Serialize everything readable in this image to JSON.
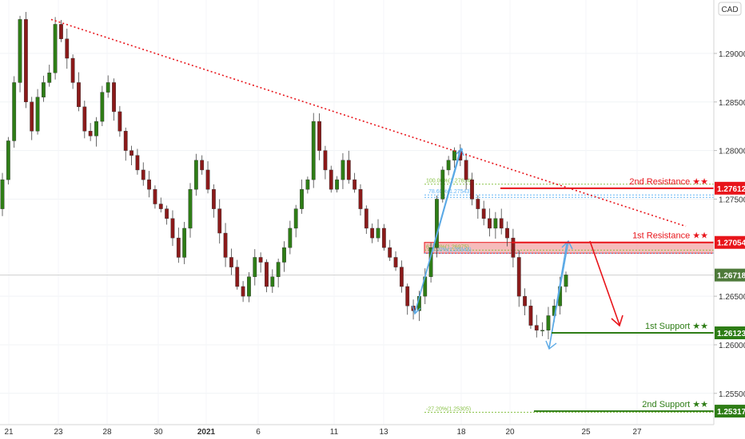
{
  "currency_badge": "CAD",
  "chart_data": {
    "type": "candlestick",
    "symbol_currency": "CAD",
    "y_ticks": [
      "1.29000",
      "1.28500",
      "1.28000",
      "1.27500",
      "1.26500",
      "1.26000",
      "1.25500"
    ],
    "x_ticks": [
      "21",
      "23",
      "28",
      "30",
      "2021",
      "6",
      "11",
      "13",
      "18",
      "20",
      "25",
      "27"
    ],
    "ylim": [
      1.2503,
      1.2955
    ],
    "last_price": "1.26718",
    "last_price_value": 1.26718,
    "levels": [
      {
        "id": "r2",
        "label": "2nd Resistance ★★",
        "price_label": "1.27612",
        "value": 1.27612,
        "color": "#e8151b"
      },
      {
        "id": "r1",
        "label": "1st Resistance ★★",
        "price_label": "1.27054",
        "value": 1.27054,
        "color": "#e8151b"
      },
      {
        "id": "s1",
        "label": "1st Support ★★",
        "price_label": "1.26123",
        "value": 1.26123,
        "color": "#2e7d16"
      },
      {
        "id": "s2",
        "label": "2nd Support ★★",
        "price_label": "1.25317",
        "value": 1.25317,
        "color": "#2e7d16"
      }
    ],
    "fib_labels": {
      "f100": "100.00%(1.27654)",
      "f786": "78.60%(1.27543)",
      "f618": "61.80%(1.26975)",
      "f50": "50.00%(1.26943)",
      "f_272": "-27.20%(1.25305)"
    },
    "closes": [
      1.277,
      1.281,
      1.287,
      1.2935,
      1.285,
      1.282,
      1.2855,
      1.287,
      1.288,
      1.293,
      1.2915,
      1.2895,
      1.287,
      1.2845,
      1.282,
      1.2815,
      1.283,
      1.286,
      1.287,
      1.284,
      1.282,
      1.28,
      1.2795,
      1.278,
      1.277,
      1.276,
      1.2745,
      1.274,
      1.273,
      1.271,
      1.269,
      1.272,
      1.276,
      1.279,
      1.278,
      1.276,
      1.274,
      1.2715,
      1.269,
      1.268,
      1.266,
      1.265,
      1.267,
      1.269,
      1.2685,
      1.266,
      1.267,
      1.2685,
      1.27,
      1.272,
      1.274,
      1.276,
      1.277,
      1.283,
      1.28,
      1.278,
      1.276,
      1.277,
      1.279,
      1.277,
      1.276,
      1.274,
      1.272,
      1.271,
      1.272,
      1.27,
      1.269,
      1.268,
      1.266,
      1.264,
      1.2635,
      1.265,
      1.267,
      1.27,
      1.275,
      1.278,
      1.279,
      1.28,
      1.279,
      1.277,
      1.275,
      1.274,
      1.273,
      1.272,
      1.273,
      1.272,
      1.271,
      1.269,
      1.265,
      1.264,
      1.262,
      1.2615,
      1.2615,
      1.263,
      1.264,
      1.266,
      1.2672
    ],
    "trendline": {
      "from_price": 1.2935,
      "to_price": 1.2722,
      "style": "dotted",
      "color": "#e8151b"
    }
  }
}
